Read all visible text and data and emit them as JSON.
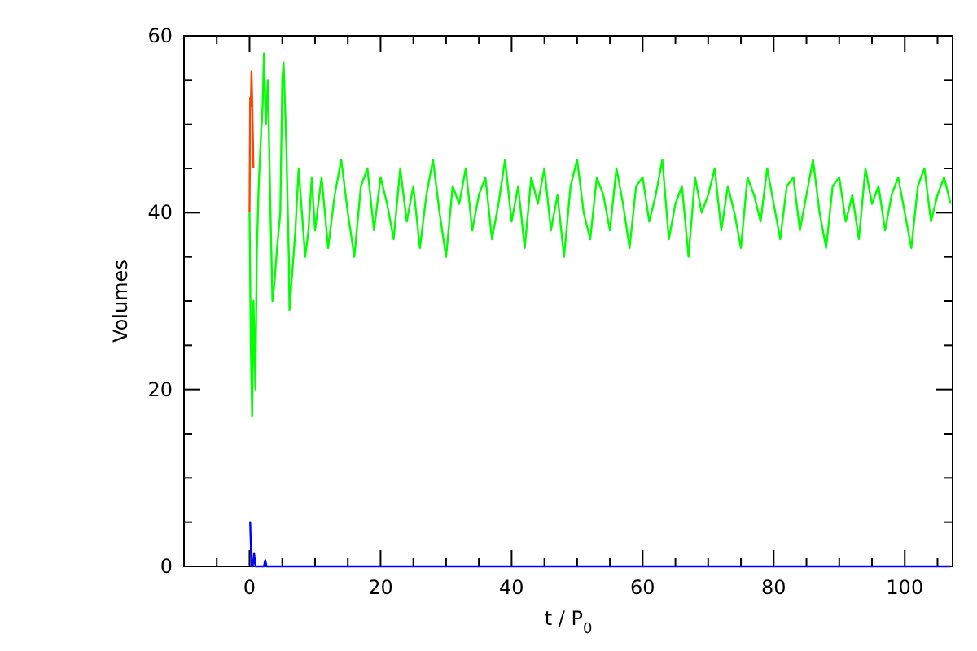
{
  "chart_data": {
    "type": "line",
    "xlabel": "t / P$_{0}$",
    "ylabel": "Volumes",
    "xlim": [
      -10,
      107.3
    ],
    "ylim": [
      0,
      60
    ],
    "xticks": [
      {
        "value": -5,
        "label": null
      },
      0,
      {
        "value": 5,
        "label": null
      },
      {
        "value": 10,
        "label": null
      },
      {
        "value": 15,
        "label": null
      },
      20,
      {
        "value": 25,
        "label": null
      },
      {
        "value": 30,
        "label": null
      },
      {
        "value": 35,
        "label": null
      },
      40,
      {
        "value": 45,
        "label": null
      },
      {
        "value": 50,
        "label": null
      },
      {
        "value": 55,
        "label": null
      },
      60,
      {
        "value": 65,
        "label": null
      },
      {
        "value": 70,
        "label": null
      },
      {
        "value": 75,
        "label": null
      },
      80,
      {
        "value": 85,
        "label": null
      },
      {
        "value": 90,
        "label": null
      },
      {
        "value": 95,
        "label": null
      },
      100,
      {
        "value": 105,
        "label": null
      }
    ],
    "yticks": [
      0,
      {
        "value": 5,
        "label": null
      },
      {
        "value": 10,
        "label": null
      },
      {
        "value": 15,
        "label": null
      },
      20,
      {
        "value": 25,
        "label": null
      },
      {
        "value": 30,
        "label": null
      },
      {
        "value": 35,
        "label": null
      },
      40,
      {
        "value": 45,
        "label": null
      },
      {
        "value": 50,
        "label": null
      },
      {
        "value": 55,
        "label": null
      },
      60
    ],
    "grid": false,
    "series": [
      {
        "color": "#00ff00",
        "x": [
          0,
          0.2,
          0.4,
          0.6,
          0.9,
          1.1,
          1.4,
          1.7,
          2.0,
          2.2,
          2.5,
          2.8,
          3.2,
          3.5,
          3.8,
          4.2,
          4.7,
          5.0,
          5.2,
          5.6,
          6.0,
          6.1,
          6.5,
          7.0,
          7.5,
          8.0,
          8.5,
          9.0,
          9.5,
          10,
          11,
          12,
          13,
          14,
          15,
          16,
          17,
          18,
          19,
          20,
          21,
          22,
          23,
          24,
          25,
          26,
          27,
          28,
          29,
          30,
          31,
          32,
          33,
          34,
          35,
          36,
          37,
          38,
          39,
          40,
          41,
          42,
          43,
          44,
          45,
          46,
          47,
          48,
          49,
          50,
          51,
          52,
          53,
          54,
          55,
          56,
          57,
          58,
          59,
          60,
          61,
          62,
          63,
          64,
          65,
          66,
          67,
          68,
          69,
          70,
          71,
          72,
          73,
          74,
          75,
          76,
          77,
          78,
          79,
          80,
          81,
          82,
          83,
          84,
          85,
          86,
          87,
          88,
          89,
          90,
          91,
          92,
          93,
          94,
          95,
          96,
          97,
          98,
          99,
          100,
          101,
          102,
          103,
          104,
          105,
          106,
          107
        ],
        "values": [
          40,
          25,
          17,
          30,
          20,
          35,
          43,
          48,
          52,
          58,
          50,
          55,
          40,
          30,
          32,
          36,
          40,
          55,
          57,
          48,
          35,
          29,
          33,
          38,
          45,
          40,
          35,
          38,
          44,
          38,
          44,
          36,
          42,
          46,
          40,
          35,
          43,
          45,
          38,
          44,
          41,
          37,
          45,
          39,
          43,
          36,
          42,
          46,
          40,
          35,
          43,
          41,
          45,
          38,
          42,
          44,
          37,
          41,
          46,
          39,
          43,
          36,
          44,
          41,
          45,
          38,
          42,
          35,
          43,
          46,
          40,
          37,
          44,
          42,
          38,
          45,
          41,
          36,
          43,
          44,
          39,
          42,
          46,
          37,
          41,
          43,
          35,
          44,
          40,
          42,
          45,
          38,
          43,
          40,
          36,
          44,
          42,
          39,
          45,
          41,
          37,
          43,
          44,
          38,
          42,
          46,
          40,
          36,
          43,
          44,
          39,
          42,
          37,
          45,
          41,
          43,
          38,
          42,
          44,
          40,
          36,
          43,
          45,
          39,
          42,
          44,
          41
        ]
      },
      {
        "color": "#ff4500",
        "x": [
          0,
          0.1,
          0.2,
          0.3,
          0.4,
          0.6
        ],
        "values": [
          40,
          53,
          52,
          56,
          53,
          45
        ]
      },
      {
        "color": "#0000ff",
        "x": [
          0,
          0.1,
          0.3,
          0.5,
          0.7,
          0.9,
          1.2,
          2.2,
          2.4,
          2.6,
          3,
          107
        ],
        "values": [
          5,
          5,
          0,
          0,
          1.5,
          0,
          0,
          0,
          0.7,
          0,
          0,
          0
        ]
      }
    ]
  }
}
